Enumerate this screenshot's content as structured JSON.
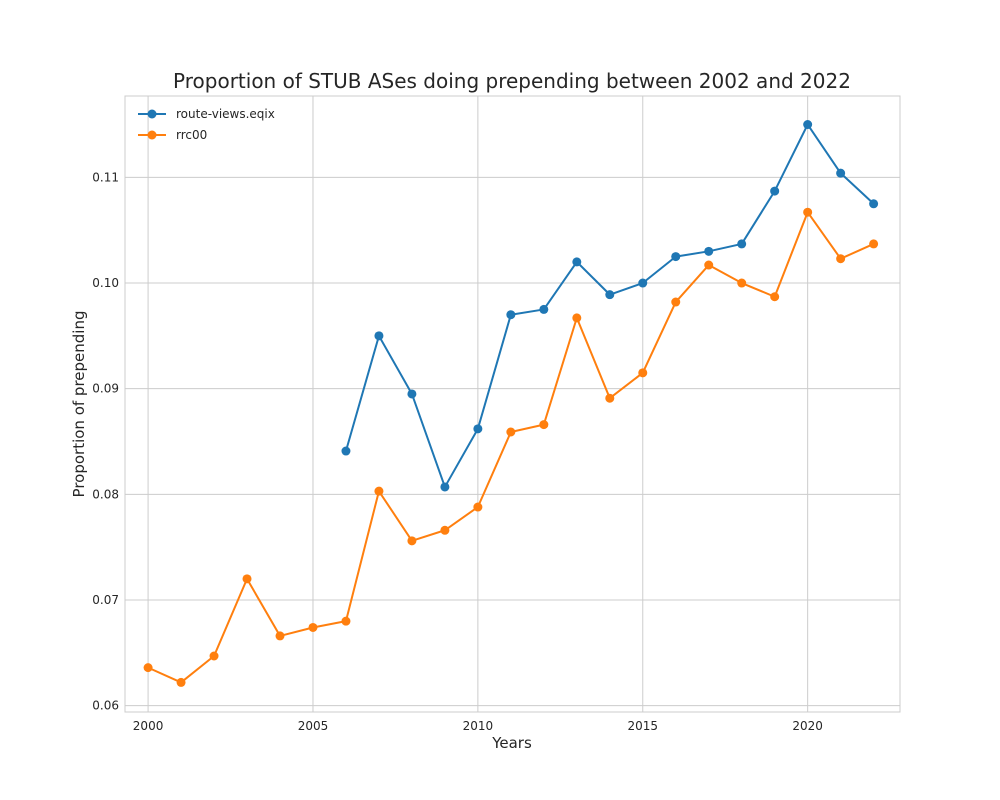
{
  "chart_data": {
    "type": "line",
    "title": "Proportion of STUB ASes doing prepending between 2002 and 2022",
    "xlabel": "Years",
    "ylabel": "Proportion of prepending",
    "xlim": [
      1999.3,
      2022.8
    ],
    "ylim": [
      0.0594,
      0.1177
    ],
    "xticks": [
      2000,
      2005,
      2010,
      2015,
      2020
    ],
    "yticks": [
      0.06,
      0.07,
      0.08,
      0.09,
      0.1,
      0.11
    ],
    "ytick_labels": [
      "0.06",
      "0.07",
      "0.08",
      "0.09",
      "0.10",
      "0.11"
    ],
    "grid": true,
    "legend_position": "top-left",
    "series": [
      {
        "name": "route-views.eqix",
        "color": "#1f77b4",
        "x": [
          2006,
          2007,
          2008,
          2009,
          2010,
          2011,
          2012,
          2013,
          2014,
          2015,
          2016,
          2017,
          2018,
          2019,
          2020,
          2021,
          2022
        ],
        "y": [
          0.0841,
          0.095,
          0.0895,
          0.0807,
          0.0862,
          0.097,
          0.0975,
          0.102,
          0.0989,
          0.1,
          0.1025,
          0.103,
          0.1037,
          0.1087,
          0.115,
          0.1104,
          0.1075
        ]
      },
      {
        "name": "rrc00",
        "color": "#ff7f0e",
        "x": [
          2000,
          2001,
          2002,
          2003,
          2004,
          2005,
          2006,
          2007,
          2008,
          2009,
          2010,
          2011,
          2012,
          2013,
          2014,
          2015,
          2016,
          2017,
          2018,
          2019,
          2020,
          2021,
          2022
        ],
        "y": [
          0.0636,
          0.0622,
          0.0647,
          0.072,
          0.0666,
          0.0674,
          0.068,
          0.0803,
          0.0756,
          0.0766,
          0.0788,
          0.0859,
          0.0866,
          0.0967,
          0.0891,
          0.0915,
          0.0982,
          0.1017,
          0.1,
          0.0987,
          0.1067,
          0.1023,
          0.1037
        ]
      }
    ]
  }
}
